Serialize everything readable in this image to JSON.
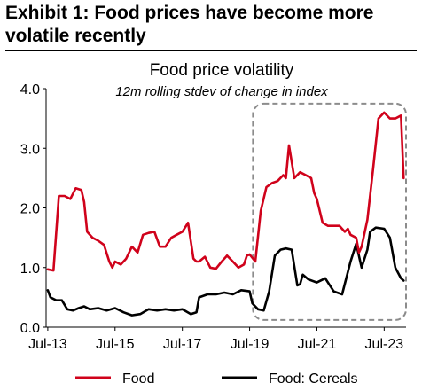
{
  "exhibit": {
    "line1": "Exhibit 1: Food prices have become more",
    "line2": "volatile recently"
  },
  "colors": {
    "food": "#d0021b",
    "cereals": "#000000",
    "highlight": "#8c8c8c"
  },
  "chart_data": {
    "type": "line",
    "title": "Food price volatility",
    "subtitle": "12m rolling stdev of change in index",
    "xlabel": "",
    "ylabel": "",
    "xlim": [
      2013.45,
      2024.15
    ],
    "ylim": [
      0,
      4
    ],
    "yticks": [
      {
        "value": 0,
        "label": "0.0"
      },
      {
        "value": 1,
        "label": "1.0"
      },
      {
        "value": 2,
        "label": "2.0"
      },
      {
        "value": 3,
        "label": "3.0"
      },
      {
        "value": 4,
        "label": "4.0"
      }
    ],
    "xticks": [
      {
        "value": 2013.5,
        "label": "Jul-13"
      },
      {
        "value": 2015.5,
        "label": "Jul-15"
      },
      {
        "value": 2017.5,
        "label": "Jul-17"
      },
      {
        "value": 2019.5,
        "label": "Jul-19"
      },
      {
        "value": 2021.5,
        "label": "Jul-21"
      },
      {
        "value": 2023.5,
        "label": "Jul-23"
      }
    ],
    "grid": false,
    "legend_position": "bottom",
    "highlight_box": {
      "x_range": [
        2019.6,
        2024.15
      ],
      "y_range": [
        0.12,
        3.75
      ]
    },
    "series": [
      {
        "name": "Food",
        "color": "#d0021b",
        "x": [
          2013.5,
          2013.67,
          2013.83,
          2013.92,
          2014.0,
          2014.17,
          2014.33,
          2014.5,
          2014.58,
          2014.67,
          2014.83,
          2015.0,
          2015.17,
          2015.33,
          2015.42,
          2015.5,
          2015.67,
          2015.83,
          2016.0,
          2016.17,
          2016.33,
          2016.5,
          2016.67,
          2016.83,
          2017.0,
          2017.17,
          2017.33,
          2017.5,
          2017.67,
          2017.83,
          2017.92,
          2018.0,
          2018.17,
          2018.33,
          2018.5,
          2018.67,
          2018.83,
          2019.0,
          2019.17,
          2019.33,
          2019.42,
          2019.5,
          2019.67,
          2019.83,
          2020.0,
          2020.17,
          2020.33,
          2020.5,
          2020.58,
          2020.67,
          2020.83,
          2021.0,
          2021.17,
          2021.33,
          2021.42,
          2021.5,
          2021.67,
          2021.83,
          2022.0,
          2022.17,
          2022.33,
          2022.42,
          2022.5,
          2022.67,
          2022.75,
          2022.83,
          2023.0,
          2023.17,
          2023.33,
          2023.5,
          2023.67,
          2023.83,
          2024.0,
          2024.08
        ],
        "values": [
          0.97,
          0.95,
          2.2,
          2.2,
          2.2,
          2.15,
          2.33,
          2.3,
          2.1,
          1.6,
          1.5,
          1.45,
          1.38,
          1.1,
          1.0,
          1.1,
          1.05,
          1.15,
          1.35,
          1.25,
          1.55,
          1.58,
          1.6,
          1.35,
          1.35,
          1.5,
          1.55,
          1.6,
          1.75,
          1.15,
          1.1,
          1.1,
          1.18,
          1.0,
          0.98,
          1.1,
          1.2,
          1.1,
          1.0,
          1.05,
          1.2,
          1.22,
          1.1,
          1.95,
          2.35,
          2.42,
          2.45,
          2.55,
          2.5,
          3.05,
          2.5,
          2.6,
          2.55,
          2.5,
          2.25,
          2.15,
          1.75,
          1.7,
          1.7,
          1.7,
          1.6,
          1.65,
          1.55,
          1.5,
          1.25,
          1.35,
          1.8,
          2.65,
          3.5,
          3.6,
          3.5,
          3.5,
          3.55,
          2.5
        ]
      },
      {
        "name": "Food: Cereals",
        "color": "#000000",
        "x": [
          2013.5,
          2013.58,
          2013.75,
          2013.92,
          2014.08,
          2014.25,
          2014.42,
          2014.58,
          2014.75,
          2015.0,
          2015.25,
          2015.5,
          2015.75,
          2016.0,
          2016.25,
          2016.5,
          2016.75,
          2017.0,
          2017.25,
          2017.5,
          2017.75,
          2017.92,
          2018.0,
          2018.25,
          2018.5,
          2018.75,
          2019.0,
          2019.25,
          2019.5,
          2019.58,
          2019.75,
          2019.92,
          2020.08,
          2020.25,
          2020.42,
          2020.58,
          2020.75,
          2020.92,
          2021.0,
          2021.08,
          2021.25,
          2021.5,
          2021.75,
          2022.0,
          2022.25,
          2022.5,
          2022.67,
          2022.83,
          2023.0,
          2023.08,
          2023.25,
          2023.5,
          2023.67,
          2023.83,
          2024.0,
          2024.08
        ],
        "values": [
          0.62,
          0.5,
          0.45,
          0.45,
          0.3,
          0.28,
          0.32,
          0.35,
          0.3,
          0.32,
          0.28,
          0.32,
          0.25,
          0.2,
          0.22,
          0.3,
          0.28,
          0.3,
          0.28,
          0.3,
          0.22,
          0.25,
          0.5,
          0.55,
          0.55,
          0.58,
          0.55,
          0.62,
          0.6,
          0.4,
          0.3,
          0.28,
          0.6,
          1.2,
          1.3,
          1.32,
          1.3,
          0.7,
          0.72,
          0.88,
          0.8,
          0.75,
          0.82,
          0.6,
          0.55,
          1.1,
          1.4,
          1.0,
          1.3,
          1.6,
          1.67,
          1.65,
          1.5,
          1.0,
          0.82,
          0.78
        ]
      }
    ]
  }
}
